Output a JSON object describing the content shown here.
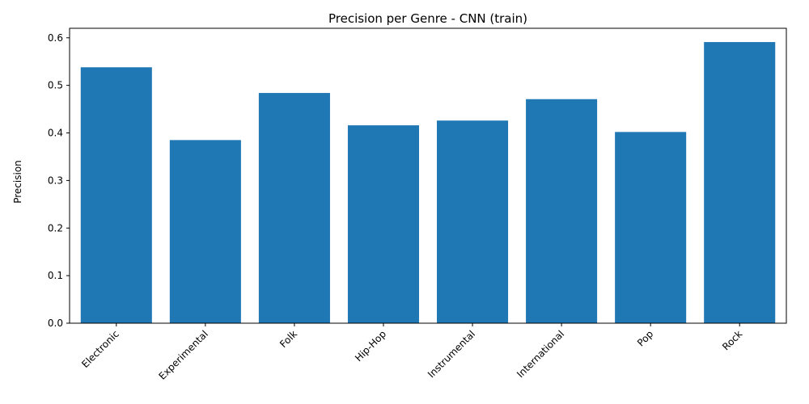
{
  "chart_data": {
    "type": "bar",
    "title": "Precision per Genre - CNN (train)",
    "xlabel": "",
    "ylabel": "Precision",
    "categories": [
      "Electronic",
      "Experimental",
      "Folk",
      "Hip-Hop",
      "Instrumental",
      "International",
      "Pop",
      "Rock"
    ],
    "values": [
      0.538,
      0.385,
      0.484,
      0.416,
      0.426,
      0.471,
      0.402,
      0.591
    ],
    "ylim": [
      0,
      0.62
    ],
    "yticks": [
      0.0,
      0.1,
      0.2,
      0.3,
      0.4,
      0.5,
      0.6
    ],
    "ytick_labels": [
      "0.0",
      "0.1",
      "0.2",
      "0.3",
      "0.4",
      "0.5",
      "0.6"
    ],
    "bar_color": "#1f77b4",
    "grid": false,
    "legend": "none"
  }
}
